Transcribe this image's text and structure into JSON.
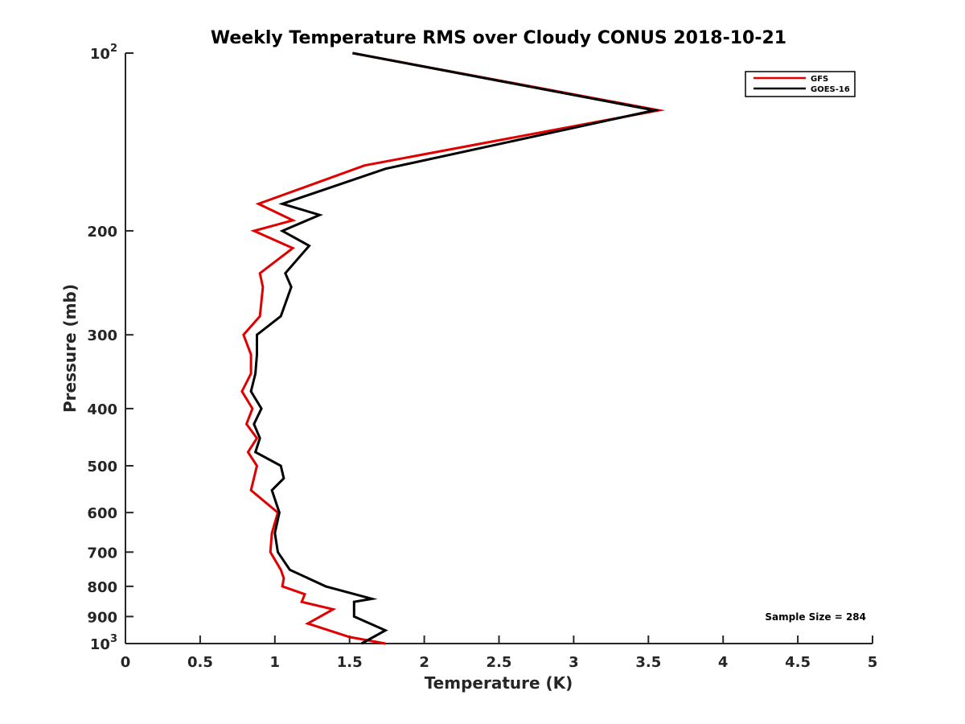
{
  "chart_data": {
    "type": "line",
    "title": "Weekly Temperature RMS over Cloudy CONUS 2018-10-21",
    "xlabel": "Temperature (K)",
    "ylabel": "Pressure (mb)",
    "xlim": [
      0,
      5
    ],
    "ylim": [
      100,
      1000
    ],
    "y_scale": "log",
    "y_reversed": true,
    "grid": false,
    "legend_position": "top-right",
    "x_ticks": [
      "0",
      "0.5",
      "1",
      "1.5",
      "2",
      "2.5",
      "3",
      "3.5",
      "4",
      "4.5",
      "5"
    ],
    "x_tick_values": [
      0,
      0.5,
      1,
      1.5,
      2,
      2.5,
      3,
      3.5,
      4,
      4.5,
      5
    ],
    "y_ticks": [
      {
        "value": 100,
        "base": "10",
        "exp": "2"
      },
      {
        "value": 200,
        "label": "200"
      },
      {
        "value": 300,
        "label": "300"
      },
      {
        "value": 400,
        "label": "400"
      },
      {
        "value": 500,
        "label": "500"
      },
      {
        "value": 600,
        "label": "600"
      },
      {
        "value": 700,
        "label": "700"
      },
      {
        "value": 800,
        "label": "800"
      },
      {
        "value": 900,
        "label": "900"
      },
      {
        "value": 1000,
        "base": "10",
        "exp": "3"
      }
    ],
    "annotation": "Sample Size = 284",
    "series": [
      {
        "name": "GFS",
        "color": "#e00000",
        "points": [
          [
            1.52,
            100
          ],
          [
            3.57,
            125
          ],
          [
            1.6,
            155
          ],
          [
            0.89,
            180
          ],
          [
            1.12,
            192
          ],
          [
            0.86,
            200
          ],
          [
            1.12,
            214
          ],
          [
            0.9,
            236
          ],
          [
            0.92,
            249
          ],
          [
            0.9,
            279
          ],
          [
            0.79,
            300
          ],
          [
            0.84,
            324
          ],
          [
            0.84,
            349
          ],
          [
            0.78,
            374
          ],
          [
            0.85,
            400
          ],
          [
            0.81,
            425
          ],
          [
            0.88,
            449
          ],
          [
            0.82,
            474
          ],
          [
            0.88,
            500
          ],
          [
            0.84,
            550
          ],
          [
            1.02,
            600
          ],
          [
            0.98,
            650
          ],
          [
            0.97,
            700
          ],
          [
            1.04,
            750
          ],
          [
            1.06,
            775
          ],
          [
            1.05,
            800
          ],
          [
            1.2,
            825
          ],
          [
            1.18,
            850
          ],
          [
            1.39,
            875
          ],
          [
            1.22,
            925
          ],
          [
            1.5,
            975
          ],
          [
            1.74,
            1000
          ]
        ]
      },
      {
        "name": "GOES-16",
        "color": "#000000",
        "points": [
          [
            1.52,
            100
          ],
          [
            3.54,
            125
          ],
          [
            1.74,
            157
          ],
          [
            1.05,
            180
          ],
          [
            1.3,
            188
          ],
          [
            1.05,
            200
          ],
          [
            1.23,
            212
          ],
          [
            1.07,
            236
          ],
          [
            1.11,
            249
          ],
          [
            1.04,
            279
          ],
          [
            0.88,
            300
          ],
          [
            0.88,
            324
          ],
          [
            0.87,
            349
          ],
          [
            0.84,
            374
          ],
          [
            0.91,
            400
          ],
          [
            0.86,
            425
          ],
          [
            0.9,
            449
          ],
          [
            0.87,
            474
          ],
          [
            1.04,
            500
          ],
          [
            1.06,
            525
          ],
          [
            0.98,
            550
          ],
          [
            1.03,
            600
          ],
          [
            1.0,
            650
          ],
          [
            1.02,
            700
          ],
          [
            1.1,
            750
          ],
          [
            1.34,
            800
          ],
          [
            1.65,
            840
          ],
          [
            1.53,
            850
          ],
          [
            1.53,
            900
          ],
          [
            1.74,
            950
          ],
          [
            1.58,
            1000
          ]
        ]
      }
    ]
  }
}
